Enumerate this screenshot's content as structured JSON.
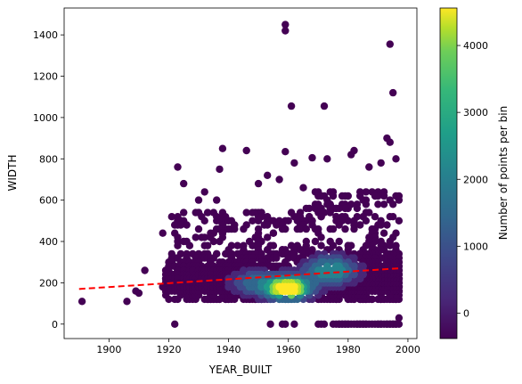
{
  "chart_data": {
    "type": "scatter",
    "title": "",
    "xlabel": "YEAR_BUILT",
    "ylabel": "WIDTH",
    "xlim": [
      1885,
      2003
    ],
    "ylim": [
      -70,
      1530
    ],
    "xticks": [
      "1900",
      "1920",
      "1940",
      "1960",
      "1980",
      "2000"
    ],
    "yticks": [
      "0",
      "200",
      "400",
      "600",
      "800",
      "1000",
      "1200",
      "1400"
    ],
    "grid": false,
    "colorbar": {
      "label": "Number of points per bin",
      "range": [
        -380,
        4560
      ],
      "ticks": [
        "0",
        "1000",
        "2000",
        "3000",
        "4000"
      ],
      "colormap": "viridis"
    },
    "trend_line": {
      "x": [
        1890,
        1997
      ],
      "y": [
        170,
        270
      ],
      "color": "#ff0000",
      "style": "dashed"
    },
    "point_colors": [
      "#440154",
      "#482777",
      "#3f4a8a",
      "#31678e",
      "#26838f",
      "#1f9d8a",
      "#6cce5a",
      "#b6de2b",
      "#fee825"
    ],
    "outliers": [
      {
        "x": 1891,
        "y": 110
      },
      {
        "x": 1906,
        "y": 110
      },
      {
        "x": 1909,
        "y": 160
      },
      {
        "x": 1910,
        "y": 150
      },
      {
        "x": 1912,
        "y": 260
      },
      {
        "x": 1922,
        "y": 0
      },
      {
        "x": 1923,
        "y": 760
      },
      {
        "x": 1925,
        "y": 680
      },
      {
        "x": 1930,
        "y": 600
      },
      {
        "x": 1932,
        "y": 640
      },
      {
        "x": 1936,
        "y": 600
      },
      {
        "x": 1937,
        "y": 750
      },
      {
        "x": 1938,
        "y": 850
      },
      {
        "x": 1946,
        "y": 840
      },
      {
        "x": 1950,
        "y": 680
      },
      {
        "x": 1953,
        "y": 720
      },
      {
        "x": 1954,
        "y": 0
      },
      {
        "x": 1957,
        "y": 700
      },
      {
        "x": 1959,
        "y": 1450
      },
      {
        "x": 1959,
        "y": 1420
      },
      {
        "x": 1961,
        "y": 1055
      },
      {
        "x": 1959,
        "y": 835
      },
      {
        "x": 1962,
        "y": 780
      },
      {
        "x": 1965,
        "y": 660
      },
      {
        "x": 1968,
        "y": 805
      },
      {
        "x": 1972,
        "y": 1055
      },
      {
        "x": 1973,
        "y": 800
      },
      {
        "x": 1975,
        "y": 560
      },
      {
        "x": 1981,
        "y": 820
      },
      {
        "x": 1982,
        "y": 840
      },
      {
        "x": 1987,
        "y": 760
      },
      {
        "x": 1991,
        "y": 780
      },
      {
        "x": 1993,
        "y": 900
      },
      {
        "x": 1994,
        "y": 880
      },
      {
        "x": 1994,
        "y": 1355
      },
      {
        "x": 1995,
        "y": 1120
      },
      {
        "x": 1996,
        "y": 800
      },
      {
        "x": 1997,
        "y": 30
      }
    ]
  }
}
